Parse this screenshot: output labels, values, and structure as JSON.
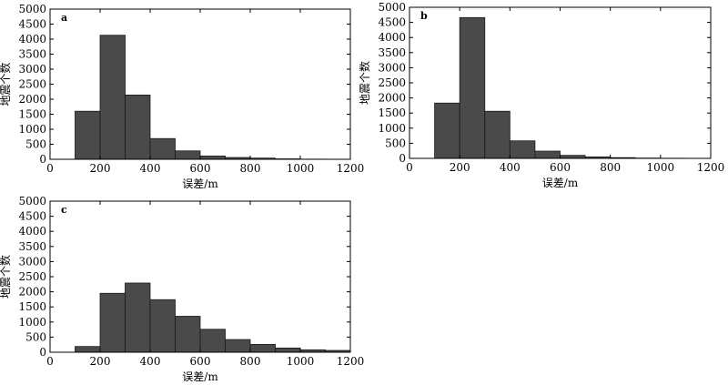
{
  "chart_data": [
    {
      "type": "bar",
      "panel_label": "a",
      "xlabel": "误差/m",
      "ylabel": "地震个数",
      "xlim": [
        0,
        1200
      ],
      "ylim": [
        0,
        5000
      ],
      "xticks": [
        "0",
        "200",
        "400",
        "600",
        "800",
        "1000",
        "1200"
      ],
      "yticks": [
        "0",
        "500",
        "1000",
        "1500",
        "2000",
        "2500",
        "3000",
        "3500",
        "4000",
        "4500",
        "5000"
      ],
      "bin_width": 100,
      "bin_starts": [
        100,
        200,
        300,
        400,
        500,
        600,
        700,
        800,
        900,
        1000,
        1100
      ],
      "values": [
        1600,
        4130,
        2140,
        690,
        280,
        110,
        60,
        40,
        15,
        5,
        0
      ]
    },
    {
      "type": "bar",
      "panel_label": "b",
      "xlabel": "误差/m",
      "ylabel": "地震个数",
      "xlim": [
        0,
        1200
      ],
      "ylim": [
        0,
        5000
      ],
      "xticks": [
        "0",
        "200",
        "400",
        "600",
        "800",
        "1000",
        "1200"
      ],
      "yticks": [
        "0",
        "500",
        "1000",
        "1500",
        "2000",
        "2500",
        "3000",
        "3500",
        "4000",
        "4500",
        "5000"
      ],
      "bin_width": 100,
      "bin_starts": [
        100,
        200,
        300,
        400,
        500,
        600,
        700,
        800,
        900,
        1000,
        1100
      ],
      "values": [
        1830,
        4660,
        1560,
        580,
        240,
        100,
        50,
        25,
        10,
        5,
        0
      ]
    },
    {
      "type": "bar",
      "panel_label": "c",
      "xlabel": "误差/m",
      "ylabel": "地震个数",
      "xlim": [
        0,
        1200
      ],
      "ylim": [
        0,
        5000
      ],
      "xticks": [
        "0",
        "200",
        "400",
        "600",
        "800",
        "1000",
        "1200"
      ],
      "yticks": [
        "0",
        "500",
        "1000",
        "1500",
        "2000",
        "2500",
        "3000",
        "3500",
        "4000",
        "4500",
        "5000"
      ],
      "bin_width": 100,
      "bin_starts": [
        100,
        200,
        300,
        400,
        500,
        600,
        700,
        800,
        900,
        1000,
        1100
      ],
      "values": [
        190,
        1950,
        2290,
        1740,
        1190,
        760,
        420,
        260,
        140,
        80,
        60
      ]
    }
  ],
  "colors": {
    "bar_fill": "#4a4a4a",
    "bar_stroke": "#1a1a1a",
    "axis": "#000000"
  }
}
